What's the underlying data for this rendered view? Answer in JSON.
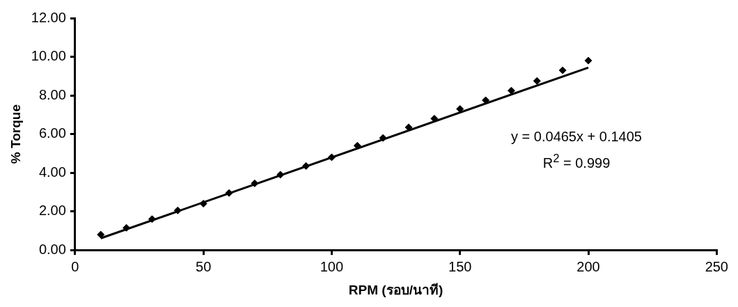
{
  "chart_data": {
    "type": "scatter",
    "xlabel": "RPM (รอบ/นาที)",
    "ylabel": "% Torque",
    "x": [
      10,
      20,
      30,
      40,
      50,
      60,
      70,
      80,
      90,
      100,
      110,
      120,
      130,
      140,
      150,
      160,
      170,
      180,
      190,
      200
    ],
    "series": [
      {
        "color": "#000000",
        "values": [
          0.8,
          1.15,
          1.6,
          2.05,
          2.4,
          2.95,
          3.45,
          3.9,
          4.35,
          4.8,
          5.4,
          5.8,
          6.35,
          6.8,
          7.3,
          7.75,
          8.25,
          8.75,
          9.3,
          9.8
        ]
      },
      {
        "type": "line",
        "marker": "none",
        "color": "#000000",
        "x": [
          10,
          200
        ],
        "values": [
          0.61,
          9.44
        ]
      }
    ],
    "xlim": [
      0,
      250
    ],
    "xticks": [
      0,
      50,
      100,
      150,
      200,
      250
    ],
    "ylim": [
      0,
      12
    ],
    "yticks": [
      {
        "value": 0,
        "label": "0.00"
      },
      {
        "value": 2,
        "label": "2.00"
      },
      {
        "value": 4,
        "label": "4.00"
      },
      {
        "value": 6,
        "label": "6.00"
      },
      {
        "value": 8,
        "label": "8.00"
      },
      {
        "value": 10,
        "label": "10.00"
      },
      {
        "value": 12,
        "label": "12.00"
      }
    ],
    "marker": "diamond",
    "grid": false,
    "legend": false,
    "annotations": [
      "y = 0.0465x + 0.1405",
      "R$^{2}$ = 0.999"
    ]
  }
}
